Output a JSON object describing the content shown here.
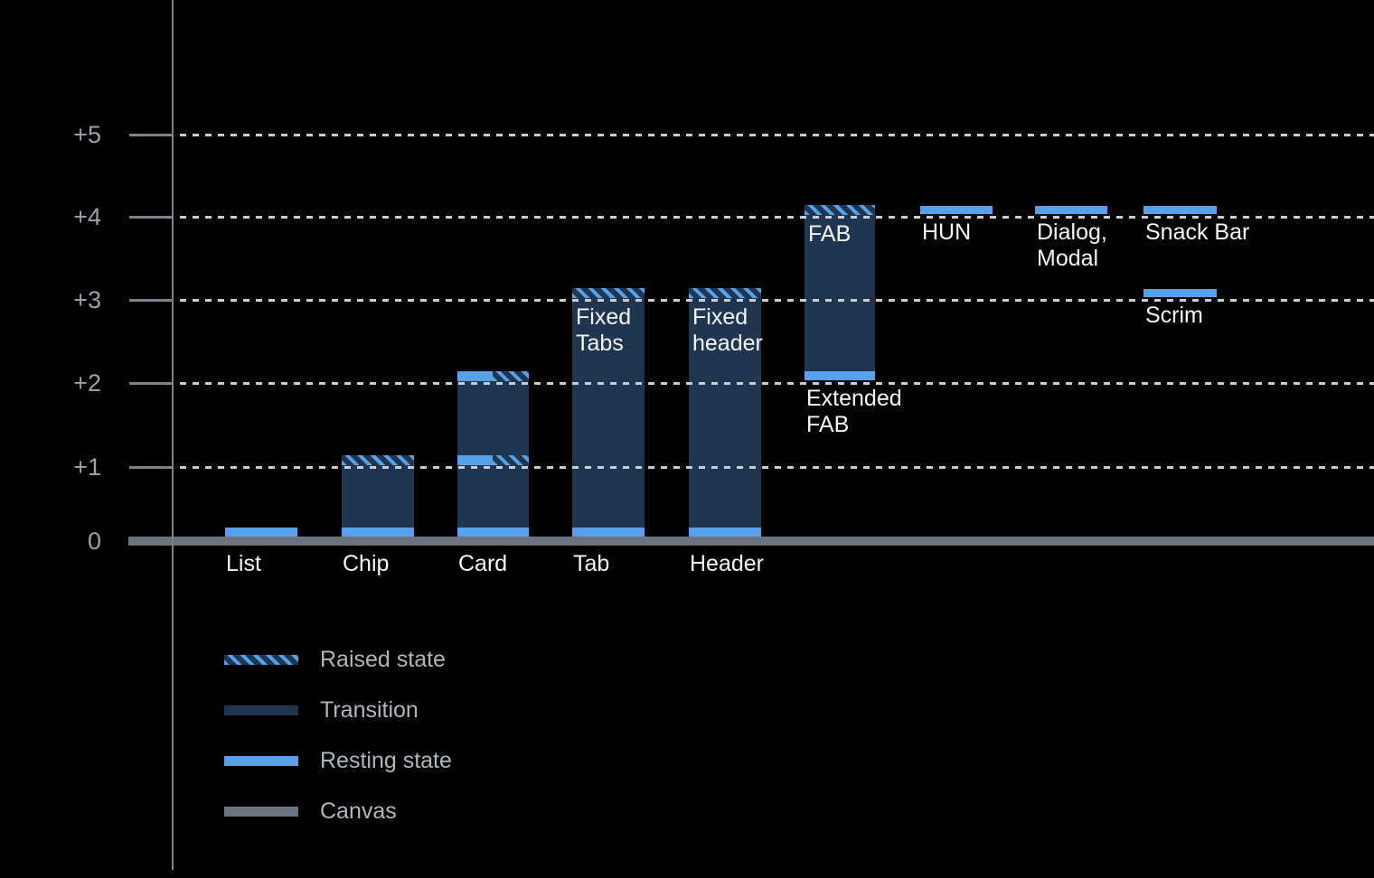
{
  "chart_data": {
    "type": "bar",
    "description": "Elevation diagram of UI components; y axis is elevation level 0 to +5",
    "ylim": [
      0,
      5
    ],
    "grid": "dotted horizontal lines at +1 through +5",
    "yticks": [
      {
        "value": 0,
        "label": "0"
      },
      {
        "value": 1,
        "label": "+1"
      },
      {
        "value": 2,
        "label": "+2"
      },
      {
        "value": 3,
        "label": "+3"
      },
      {
        "value": 4,
        "label": "+4"
      },
      {
        "value": 5,
        "label": "+5"
      }
    ],
    "bars": [
      {
        "id": "list",
        "col": 0,
        "axis_label": [
          "List"
        ],
        "segments": [
          {
            "kind": "resting",
            "from": 0,
            "to": 0.13
          }
        ]
      },
      {
        "id": "chip",
        "col": 1,
        "axis_label": [
          "Chip"
        ],
        "segments": [
          {
            "kind": "resting",
            "from": 0,
            "to": 0.13
          },
          {
            "kind": "transition",
            "from": 0.13,
            "to": 1.02
          },
          {
            "kind": "raised",
            "from": 1.02,
            "to": 1.14
          }
        ]
      },
      {
        "id": "card",
        "col": 2,
        "axis_label": [
          "Card"
        ],
        "segments": [
          {
            "kind": "resting",
            "from": 0,
            "to": 0.13
          },
          {
            "kind": "transition",
            "from": 0.13,
            "to": 1.02
          },
          {
            "kind": "split",
            "from": 1.02,
            "to": 1.14
          },
          {
            "kind": "transition",
            "from": 1.14,
            "to": 2.02
          },
          {
            "kind": "split",
            "from": 2.02,
            "to": 2.14
          }
        ]
      },
      {
        "id": "tab",
        "col": 3,
        "axis_label": [
          "Tab"
        ],
        "bar_label": [
          "Fixed",
          "Tabs"
        ],
        "segments": [
          {
            "kind": "resting",
            "from": 0,
            "to": 0.13
          },
          {
            "kind": "transition",
            "from": 0.13,
            "to": 3.02
          },
          {
            "kind": "raised",
            "from": 3.02,
            "to": 3.14
          }
        ]
      },
      {
        "id": "header",
        "col": 4,
        "axis_label": [
          "Header"
        ],
        "bar_label": [
          "Fixed",
          "header"
        ],
        "segments": [
          {
            "kind": "resting",
            "from": 0,
            "to": 0.13
          },
          {
            "kind": "transition",
            "from": 0.13,
            "to": 3.02
          },
          {
            "kind": "raised",
            "from": 3.02,
            "to": 3.14
          }
        ]
      },
      {
        "id": "extended-fab",
        "col": 5,
        "below_label": [
          "Extended",
          "FAB"
        ],
        "bar_label": [
          "FAB"
        ],
        "segments": [
          {
            "kind": "resting",
            "from": 2.03,
            "to": 2.14
          },
          {
            "kind": "transition",
            "from": 2.14,
            "to": 4.02
          },
          {
            "kind": "raised",
            "from": 4.02,
            "to": 4.14
          }
        ]
      },
      {
        "id": "hun",
        "col": 6,
        "below_label": [
          "HUN"
        ],
        "segments": [
          {
            "kind": "resting",
            "from": 4.03,
            "to": 4.13
          }
        ]
      },
      {
        "id": "dialog-modal",
        "col": 7,
        "below_label": [
          "Dialog,",
          "Modal"
        ],
        "segments": [
          {
            "kind": "resting",
            "from": 4.03,
            "to": 4.13
          }
        ]
      },
      {
        "id": "snack-bar",
        "col": 8,
        "below_label": [
          "Snack Bar"
        ],
        "segments": [
          {
            "kind": "resting",
            "from": 4.03,
            "to": 4.13
          }
        ]
      },
      {
        "id": "scrim",
        "col": 8,
        "below_label": [
          "Scrim"
        ],
        "segments": [
          {
            "kind": "resting",
            "from": 3.03,
            "to": 3.13
          }
        ]
      }
    ],
    "legend": {
      "position": "bottom-left",
      "items": [
        {
          "label": "Raised state",
          "style": "raised"
        },
        {
          "label": "Transition",
          "style": "transition"
        },
        {
          "label": "Resting state",
          "style": "resting"
        },
        {
          "label": "Canvas",
          "style": "canvas"
        }
      ]
    },
    "colors": {
      "background": "#000000",
      "resting": "#57A0EA",
      "transition": "#203650",
      "canvas": "#6B7380",
      "gridline": "#C9CED4",
      "axis": "#7B828C",
      "tick_label": "#9BA2AA",
      "bar_label": "#F5F7F8",
      "legend_label": "#B0B6BD"
    }
  }
}
